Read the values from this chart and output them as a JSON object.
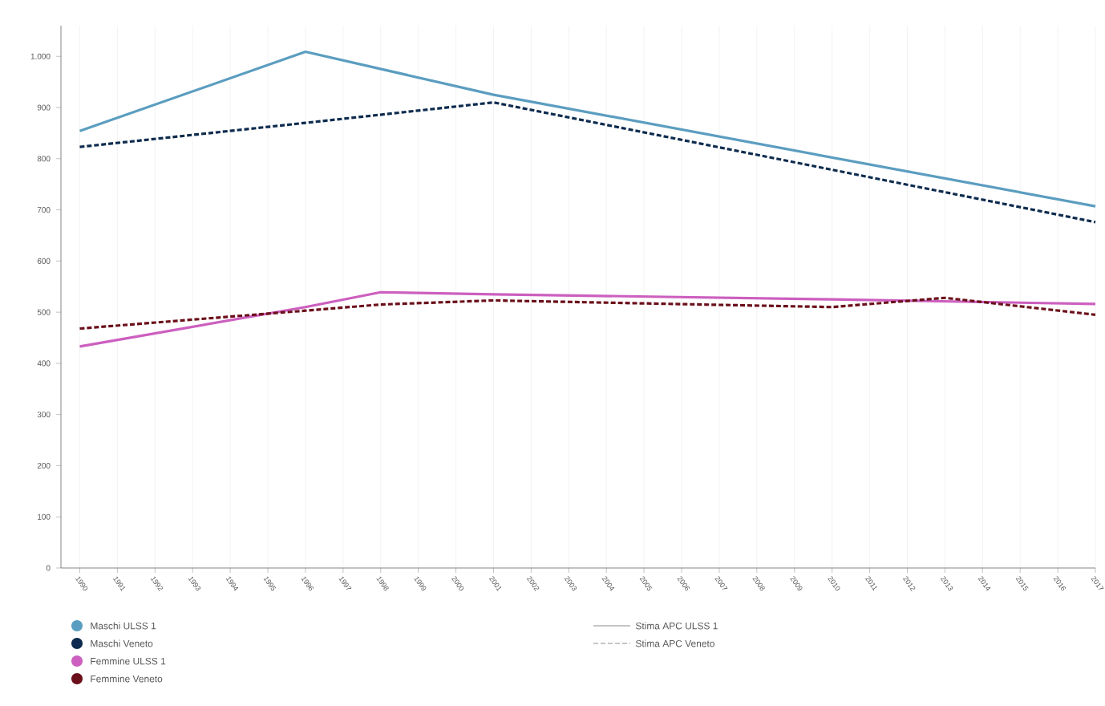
{
  "chart_data": {
    "type": "line",
    "series": [
      {
        "name": "Maschi ULSS 1",
        "color": "#5b9dc0",
        "line_style": "solid",
        "x": [
          1990,
          1996,
          2001,
          2017
        ],
        "values": [
          854,
          1009,
          925,
          707
        ]
      },
      {
        "name": "Maschi Veneto",
        "color": "#0d2b4e",
        "line_style": "dashed",
        "x": [
          1990,
          1996,
          2001,
          2017
        ],
        "values": [
          823,
          870,
          910,
          676
        ]
      },
      {
        "name": "Femmine ULSS 1",
        "color": "#cc5fbf",
        "line_style": "solid",
        "x": [
          1990,
          1996,
          1998,
          2001,
          2010,
          2017
        ],
        "values": [
          433,
          510,
          539,
          535,
          525,
          516
        ]
      },
      {
        "name": "Femmine Veneto",
        "color": "#6b0f1a",
        "line_style": "dashed",
        "x": [
          1990,
          1996,
          1998,
          2001,
          2010,
          2013,
          2017
        ],
        "values": [
          468,
          503,
          515,
          523,
          510,
          528,
          495
        ]
      }
    ],
    "xlim": [
      1989.5,
      2017
    ],
    "xticks": [
      1990,
      1991,
      1992,
      1993,
      1994,
      1995,
      1996,
      1997,
      1998,
      1999,
      2000,
      2001,
      2002,
      2003,
      2004,
      2005,
      2006,
      2007,
      2008,
      2009,
      2010,
      2011,
      2012,
      2013,
      2014,
      2015,
      2016,
      2017
    ],
    "ylim": [
      0,
      1060
    ],
    "yticks": [
      0,
      100,
      200,
      300,
      400,
      500,
      600,
      700,
      800,
      900,
      {
        "value": 1000,
        "label": "1.000"
      }
    ],
    "grid": "x",
    "legend": "bottom",
    "marker": "none",
    "annotations": [
      "Stima APC ULSS 1",
      "Stima APC Veneto"
    ]
  }
}
